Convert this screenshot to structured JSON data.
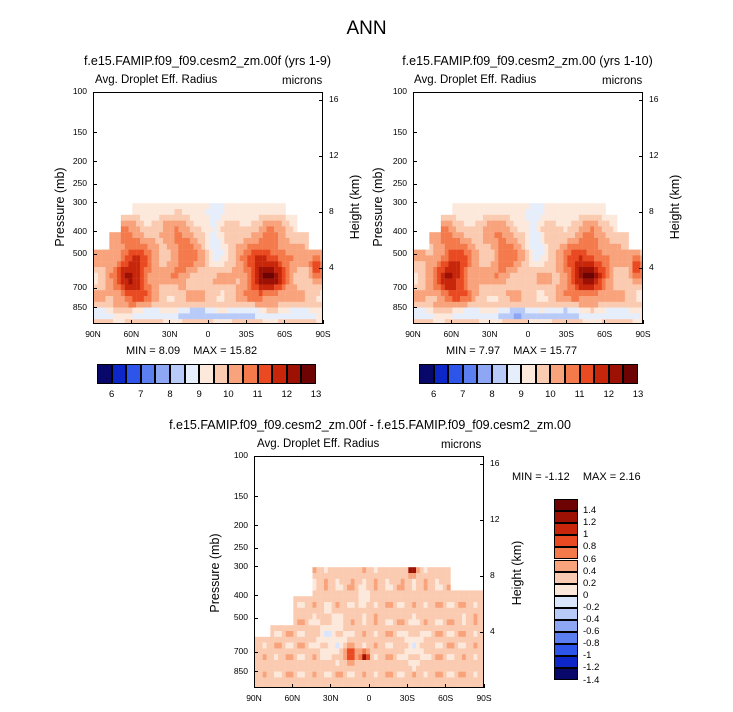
{
  "figure": {
    "title": "ANN",
    "minmax_sep": "   "
  },
  "colors": {
    "abs": [
      "#08086b",
      "#0c26c8",
      "#2d55ea",
      "#5b7ef0",
      "#8ea7f4",
      "#b8cbf8",
      "#e6eefb",
      "#fde9dc",
      "#fbcbb1",
      "#f8a37c",
      "#f47a4c",
      "#e94a22",
      "#c8260b",
      "#9d1105",
      "#6e0303"
    ],
    "diff": [
      "#08086b",
      "#0c26c8",
      "#2d55ea",
      "#5b7ef0",
      "#8ea7f4",
      "#b8cbf8",
      "#d9e6fb",
      "#fde9dc",
      "#fbcbb1",
      "#f8a37c",
      "#f47a4c",
      "#e94a22",
      "#c8260b",
      "#9d1105",
      "#6e0303"
    ]
  },
  "chart_data": [
    {
      "type": "heatmap",
      "title": "f.e15.FAMIP.f09_f09.cesm2_zm.00f (yrs 1-9)",
      "left_label": "Avg. Droplet Eff. Radius",
      "right_label": "microns",
      "xlabel": "",
      "ylabel": "Pressure (mb)",
      "y2label": "Height (km)",
      "x_ticks": [
        "90N",
        "60N",
        "30N",
        "0",
        "30S",
        "60S",
        "90S"
      ],
      "y_ticks": [
        "100",
        "150",
        "200",
        "250",
        "300",
        "400",
        "500",
        "700",
        "850"
      ],
      "y_tick_values": [
        100,
        150,
        200,
        250,
        300,
        400,
        500,
        700,
        850
      ],
      "y2_ticks": [
        "16",
        "12",
        "8",
        "4"
      ],
      "y2_tick_values": [
        16,
        12,
        8,
        4
      ],
      "ylim": [
        100,
        1000
      ],
      "min_label": "MIN =",
      "min": "8.09",
      "max_label": "MAX =",
      "max": "15.82",
      "colorbar_levels": [
        "6",
        "7",
        "8",
        "9",
        "10",
        "11",
        "12",
        "13"
      ],
      "offset": 0
    },
    {
      "type": "heatmap",
      "title": "f.e15.FAMIP.f09_f09.cesm2_zm.00 (yrs 1-10)",
      "left_label": "Avg. Droplet Eff. Radius",
      "right_label": "microns",
      "xlabel": "",
      "ylabel": "Pressure (mb)",
      "y2label": "Height (km)",
      "x_ticks": [
        "90N",
        "60N",
        "30N",
        "0",
        "30S",
        "60S",
        "90S"
      ],
      "y_ticks": [
        "100",
        "150",
        "200",
        "250",
        "300",
        "400",
        "500",
        "700",
        "850"
      ],
      "y_tick_values": [
        100,
        150,
        200,
        250,
        300,
        400,
        500,
        700,
        850
      ],
      "y2_ticks": [
        "16",
        "12",
        "8",
        "4"
      ],
      "y2_tick_values": [
        16,
        12,
        8,
        4
      ],
      "ylim": [
        100,
        1000
      ],
      "min_label": "MIN =",
      "min": "7.97",
      "max_label": "MAX =",
      "max": "15.77",
      "colorbar_levels": [
        "6",
        "7",
        "8",
        "9",
        "10",
        "11",
        "12",
        "13"
      ],
      "offset": -0.05
    },
    {
      "type": "heatmap",
      "title": "f.e15.FAMIP.f09_f09.cesm2_zm.00f - f.e15.FAMIP.f09_f09.cesm2_zm.00",
      "left_label": "Avg. Droplet Eff. Radius",
      "right_label": "microns",
      "xlabel": "",
      "ylabel": "Pressure (mb)",
      "y2label": "Height (km)",
      "x_ticks": [
        "90N",
        "60N",
        "30N",
        "0",
        "30S",
        "60S",
        "90S"
      ],
      "y_ticks": [
        "100",
        "150",
        "200",
        "250",
        "300",
        "400",
        "500",
        "700",
        "850"
      ],
      "y_tick_values": [
        100,
        150,
        200,
        250,
        300,
        400,
        500,
        700,
        850
      ],
      "y2_ticks": [
        "16",
        "12",
        "8",
        "4"
      ],
      "y2_tick_values": [
        16,
        12,
        8,
        4
      ],
      "ylim": [
        100,
        1000
      ],
      "min_label": "MIN =",
      "min": "-1.12",
      "max_label": "MAX =",
      "max": "2.16",
      "colorbar_levels": [
        "1.4",
        "1.2",
        "1",
        "0.8",
        "0.6",
        "0.4",
        "0.2",
        "0",
        "-0.2",
        "-0.4",
        "-0.6",
        "-0.8",
        "-1",
        "-1.2",
        "-1.4"
      ]
    }
  ]
}
